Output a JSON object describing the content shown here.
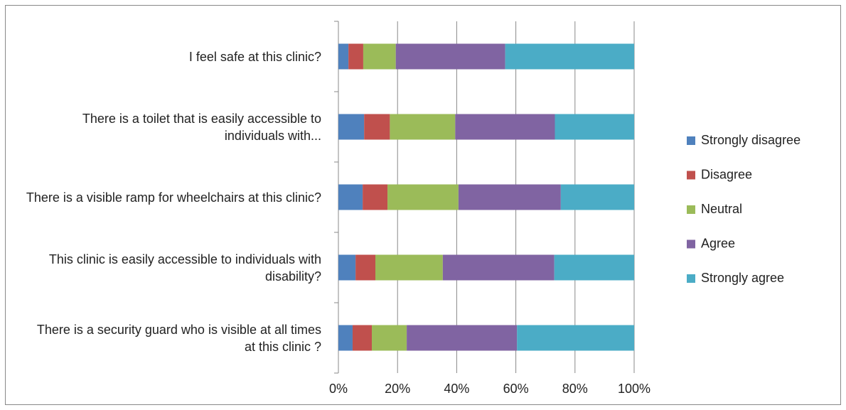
{
  "chart_data": {
    "type": "bar",
    "orientation": "horizontal",
    "stacked": true,
    "categories": [
      "I feel safe at this clinic?",
      "There is a toilet that is easily accessible to individuals with...",
      "There is a visible ramp for wheelchairs at this clinic?",
      "This clinic is easily accessible to individuals with disability?",
      "There is a security guard who is visible at all times at this clinic ?"
    ],
    "series": [
      {
        "name": "Strongly disagree",
        "color": "#4f81bd",
        "values": [
          3.4,
          8.7,
          8.2,
          5.8,
          4.8
        ]
      },
      {
        "name": "Disagree",
        "color": "#c0504d",
        "values": [
          5,
          8.7,
          8.4,
          6.7,
          6.5
        ]
      },
      {
        "name": "Neutral",
        "color": "#9bbb59",
        "values": [
          11,
          22.1,
          24,
          22.8,
          11.8
        ]
      },
      {
        "name": "Agree",
        "color": "#8064a2",
        "values": [
          37,
          33.7,
          34.6,
          37.7,
          37.3
        ]
      },
      {
        "name": "Strongly agree",
        "color": "#4bacc6",
        "values": [
          43.6,
          26.8,
          24.8,
          27,
          39.6
        ]
      }
    ],
    "xlim": [
      0,
      100
    ],
    "xticks": [
      {
        "value": 0,
        "label": "0%"
      },
      {
        "value": 20,
        "label": "20%"
      },
      {
        "value": 40,
        "label": "40%"
      },
      {
        "value": 60,
        "label": "60%"
      },
      {
        "value": 80,
        "label": "80%"
      },
      {
        "value": 100,
        "label": "100%"
      }
    ],
    "grid": true,
    "legend": "right"
  }
}
